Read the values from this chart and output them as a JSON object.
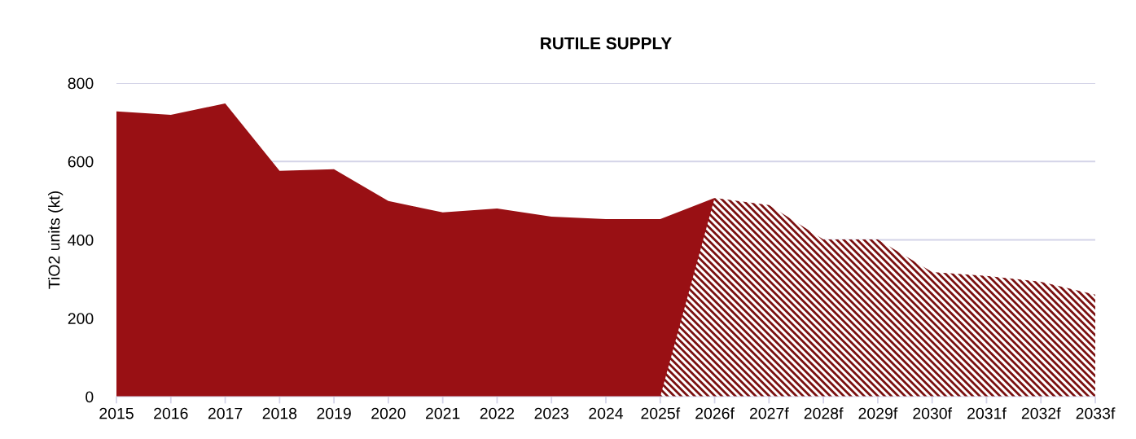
{
  "chart_data": {
    "type": "area",
    "title": "RUTILE SUPPLY",
    "ylabel": "TiO2 units (kt)",
    "categories": [
      "2015",
      "2016",
      "2017",
      "2018",
      "2019",
      "2020",
      "2021",
      "2022",
      "2023",
      "2024",
      "2025f",
      "2026f",
      "2027f",
      "2028f",
      "2029f",
      "2030f",
      "2031f",
      "2032f",
      "2033f"
    ],
    "series": [
      {
        "color": "#991014",
        "values": [
          728,
          719,
          748,
          576,
          580,
          499,
          470,
          480,
          459,
          453,
          453,
          507,
          null,
          null,
          null,
          null,
          null,
          null,
          null
        ]
      },
      {
        "color": "#7a1010",
        "values": [
          null,
          null,
          null,
          null,
          null,
          null,
          null,
          null,
          null,
          null,
          0,
          507,
          489,
          401,
          401,
          318,
          308,
          293,
          260
        ]
      }
    ],
    "ylim": [
      0,
      800
    ],
    "yticks": [
      0,
      200,
      400,
      600,
      800
    ],
    "grid": "y",
    "legend": false
  }
}
